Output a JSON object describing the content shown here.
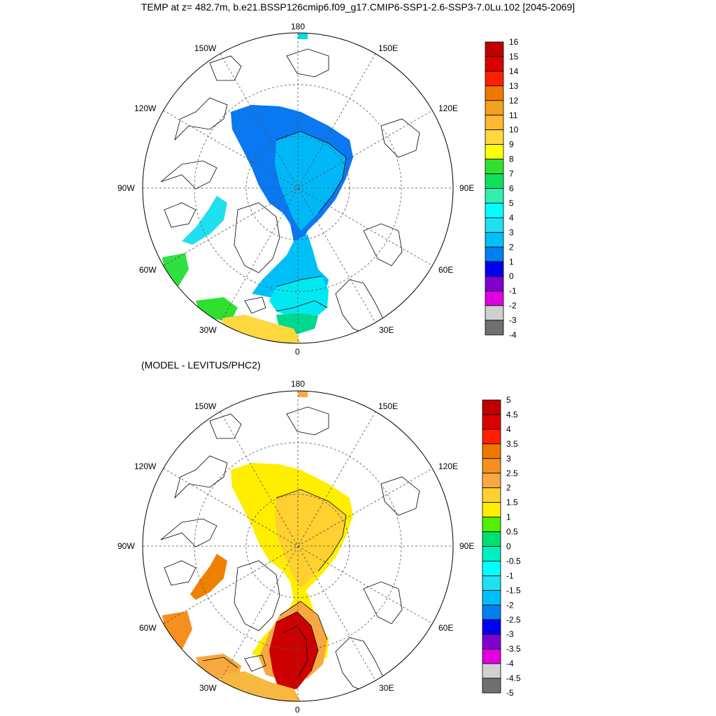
{
  "title": "TEMP at z= 482.7m, b.e21.BSSP126cmip6.f09_g17.CMIP6-SSP1-2.6-SSP3-7.0Lu.102 [2045-2069]",
  "subtitle": "(MODEL - LEVITUS/PHC2)",
  "longitude_labels": [
    "180",
    "150E",
    "120E",
    "90E",
    "60E",
    "30E",
    "0",
    "30W",
    "60W",
    "90W",
    "120W",
    "150W"
  ],
  "colors": {
    "land_outline": "#000000",
    "graticule": "#555555"
  },
  "panels": [
    {
      "name": "temperature",
      "colorbar": {
        "labels": [
          "16",
          "15",
          "14",
          "13",
          "12",
          "11",
          "10",
          "9",
          "8",
          "7",
          "6",
          "5",
          "4",
          "3",
          "2",
          "1",
          "0",
          "-1",
          "-2",
          "-3",
          "-4"
        ],
        "colors": [
          "#c00000",
          "#dd0000",
          "#ff2000",
          "#f07800",
          "#f5a020",
          "#ffb830",
          "#ffd840",
          "#ffff00",
          "#30e030",
          "#10e060",
          "#30f0b0",
          "#00ffff",
          "#20e0f0",
          "#00c0f8",
          "#0080f0",
          "#0000f0",
          "#8000d0",
          "#e000e0",
          "#d0d0d0",
          "#707070"
        ]
      },
      "fill_colors": {
        "arctic_outer": "#0a78f0",
        "arctic_inner": "#00b8f8",
        "fram_strait": "#00c0f8",
        "norwegian_sea": "#00e8f0",
        "baffin_bay": "#20e0f0",
        "norwegian_south": "#00d890",
        "labrador": "#30e040",
        "iceland_east": "#30e030",
        "atlantic_south": "#ffd840",
        "pacific": "#00e0e0"
      }
    },
    {
      "name": "difference",
      "colorbar": {
        "labels": [
          "5",
          "4.5",
          "4",
          "3.5",
          "3",
          "2.5",
          "2",
          "1.5",
          "1",
          "0.5",
          "0",
          "-0.5",
          "-1",
          "-1.5",
          "-2",
          "-2.5",
          "-3",
          "-3.5",
          "-4",
          "-4.5",
          "-5"
        ],
        "colors": [
          "#c00000",
          "#dd0000",
          "#ff2000",
          "#f07800",
          "#f59020",
          "#f8a840",
          "#ffd030",
          "#ffee00",
          "#50f000",
          "#00e070",
          "#00f0c0",
          "#00ffff",
          "#20e0f0",
          "#00c0f8",
          "#0080f0",
          "#0000f0",
          "#8000d0",
          "#e000e0",
          "#d0d0d0",
          "#707070"
        ]
      },
      "fill_colors": {
        "arctic_outer": "#ffee00",
        "arctic_inner": "#ffd030",
        "fram_strait": "#ffee00",
        "norwegian_sea": "#f8a840",
        "baffin_bay": "#f08000",
        "labrador": "#f59020",
        "iceland_east": "#f8a840",
        "atlantic_south": "#f8b840",
        "norwegian_core": "#cc0000",
        "pacific": "#f8a840"
      }
    }
  ]
}
